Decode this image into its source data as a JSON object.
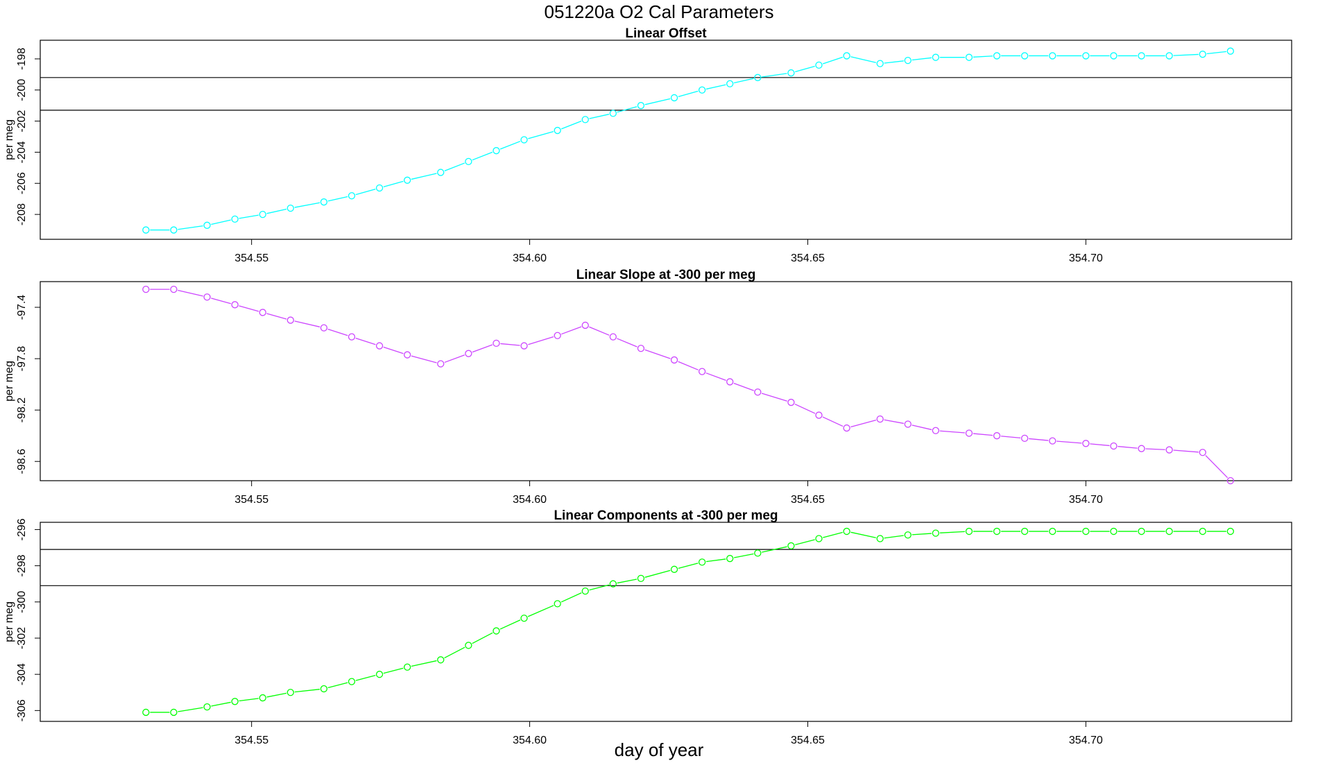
{
  "figure": {
    "title": "051220a   O2 Cal Parameters",
    "xlabel": "day of year"
  },
  "chart_data": [
    {
      "type": "line",
      "title": "Linear Offset",
      "ylabel": "per meg",
      "color": "#00ffff",
      "xlim": [
        354.512,
        354.737
      ],
      "ylim": [
        -209.6,
        -196.8
      ],
      "xticks": [
        354.55,
        354.6,
        354.65,
        354.7
      ],
      "xtick_labels": [
        "354.55",
        "354.60",
        "354.65",
        "354.70"
      ],
      "yticks": [
        -208,
        -206,
        -204,
        -202,
        -200,
        -198
      ],
      "ytick_labels": [
        "-208",
        "-206",
        "-204",
        "-202",
        "-200",
        "-198"
      ],
      "hlines": [
        -199.2,
        -201.3
      ],
      "x": [
        354.531,
        354.536,
        354.542,
        354.547,
        354.552,
        354.557,
        354.563,
        354.568,
        354.573,
        354.578,
        354.584,
        354.589,
        354.594,
        354.599,
        354.605,
        354.61,
        354.615,
        354.62,
        354.626,
        354.631,
        354.636,
        354.641,
        354.647,
        354.652,
        354.657,
        354.663,
        354.668,
        354.673,
        354.679,
        354.684,
        354.689,
        354.694,
        354.7,
        354.705,
        354.71,
        354.715,
        354.721,
        354.726
      ],
      "y": [
        -209.0,
        -209.0,
        -208.7,
        -208.3,
        -208.0,
        -207.6,
        -207.2,
        -206.8,
        -206.3,
        -205.8,
        -205.3,
        -204.6,
        -203.9,
        -203.2,
        -202.6,
        -201.9,
        -201.5,
        -201.0,
        -200.5,
        -200.0,
        -199.6,
        -199.2,
        -198.9,
        -198.4,
        -197.8,
        -198.3,
        -198.1,
        -197.9,
        -197.9,
        -197.8,
        -197.8,
        -197.8,
        -197.8,
        -197.8,
        -197.8,
        -197.8,
        -197.7,
        -197.5
      ]
    },
    {
      "type": "line",
      "title": "Linear Slope at -300 per meg",
      "ylabel": "per meg",
      "color": "#cc44ff",
      "xlim": [
        354.512,
        354.737
      ],
      "ylim": [
        -98.75,
        -97.2
      ],
      "xticks": [
        354.55,
        354.6,
        354.65,
        354.7
      ],
      "xtick_labels": [
        "354.55",
        "354.60",
        "354.65",
        "354.70"
      ],
      "yticks": [
        -98.6,
        -98.2,
        -97.8,
        -97.4
      ],
      "ytick_labels": [
        "-98.6",
        "-98.2",
        "-97.8",
        "-97.4"
      ],
      "hlines": [],
      "x": [
        354.531,
        354.536,
        354.542,
        354.547,
        354.552,
        354.557,
        354.563,
        354.568,
        354.573,
        354.578,
        354.584,
        354.589,
        354.594,
        354.599,
        354.605,
        354.61,
        354.615,
        354.62,
        354.626,
        354.631,
        354.636,
        354.641,
        354.647,
        354.652,
        354.657,
        354.663,
        354.668,
        354.673,
        354.679,
        354.684,
        354.689,
        354.694,
        354.7,
        354.705,
        354.71,
        354.715,
        354.721,
        354.726
      ],
      "y": [
        -97.26,
        -97.26,
        -97.32,
        -97.38,
        -97.44,
        -97.5,
        -97.56,
        -97.63,
        -97.7,
        -97.77,
        -97.84,
        -97.76,
        -97.68,
        -97.7,
        -97.62,
        -97.54,
        -97.63,
        -97.72,
        -97.81,
        -97.9,
        -97.98,
        -98.06,
        -98.14,
        -98.24,
        -98.34,
        -98.27,
        -98.31,
        -98.36,
        -98.38,
        -98.4,
        -98.42,
        -98.44,
        -98.46,
        -98.48,
        -98.5,
        -98.51,
        -98.53,
        -98.75
      ]
    },
    {
      "type": "line",
      "title": "Linear Components at -300 per meg",
      "ylabel": "per meg",
      "color": "#00ff00",
      "xlim": [
        354.512,
        354.737
      ],
      "ylim": [
        -306.6,
        -295.6
      ],
      "xticks": [
        354.55,
        354.6,
        354.65,
        354.7
      ],
      "xtick_labels": [
        "354.55",
        "354.60",
        "354.65",
        "354.70"
      ],
      "yticks": [
        -306,
        -304,
        -302,
        -300,
        -298,
        -296
      ],
      "ytick_labels": [
        "-306",
        "-304",
        "-302",
        "-300",
        "-298",
        "-296"
      ],
      "hlines": [
        -297.1,
        -299.1
      ],
      "x": [
        354.531,
        354.536,
        354.542,
        354.547,
        354.552,
        354.557,
        354.563,
        354.568,
        354.573,
        354.578,
        354.584,
        354.589,
        354.594,
        354.599,
        354.605,
        354.61,
        354.615,
        354.62,
        354.626,
        354.631,
        354.636,
        354.641,
        354.647,
        354.652,
        354.657,
        354.663,
        354.668,
        354.673,
        354.679,
        354.684,
        354.689,
        354.694,
        354.7,
        354.705,
        354.71,
        354.715,
        354.721,
        354.726
      ],
      "y": [
        -306.1,
        -306.1,
        -305.8,
        -305.5,
        -305.3,
        -305.0,
        -304.8,
        -304.4,
        -304.0,
        -303.6,
        -303.2,
        -302.4,
        -301.6,
        -300.9,
        -300.1,
        -299.4,
        -299.0,
        -298.7,
        -298.2,
        -297.8,
        -297.6,
        -297.3,
        -296.9,
        -296.5,
        -296.1,
        -296.5,
        -296.3,
        -296.2,
        -296.1,
        -296.1,
        -296.1,
        -296.1,
        -296.1,
        -296.1,
        -296.1,
        -296.1,
        -296.1,
        -296.1
      ]
    }
  ]
}
